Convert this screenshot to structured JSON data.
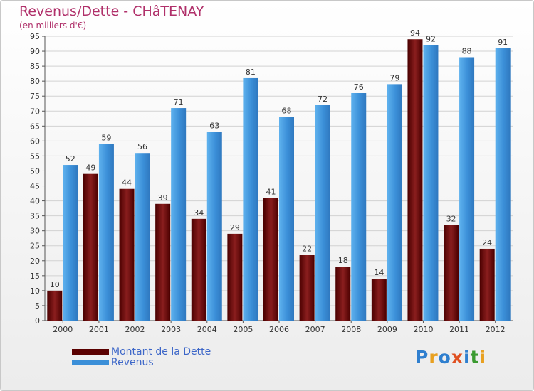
{
  "chart_data": {
    "type": "bar",
    "title": "Revenus/Dette - CHâTENAY",
    "subtitle": "(en milliers d'€)",
    "categories": [
      "2000",
      "2001",
      "2002",
      "2003",
      "2004",
      "2005",
      "2006",
      "2007",
      "2008",
      "2009",
      "2010",
      "2011",
      "2012"
    ],
    "series": [
      {
        "name": "Montant de la Dette",
        "color": "#6e0c0c",
        "values": [
          10,
          49,
          44,
          39,
          34,
          29,
          41,
          22,
          18,
          14,
          94,
          32,
          24
        ]
      },
      {
        "name": "Revenus",
        "color": "#3b8fd8",
        "values": [
          52,
          59,
          56,
          71,
          63,
          81,
          68,
          72,
          76,
          79,
          92,
          88,
          91
        ]
      }
    ],
    "ylim": [
      0,
      95
    ],
    "ytick_step": 5,
    "grid": true,
    "legend_position": "bottom-left"
  },
  "logo": {
    "text": "Proxiti"
  }
}
